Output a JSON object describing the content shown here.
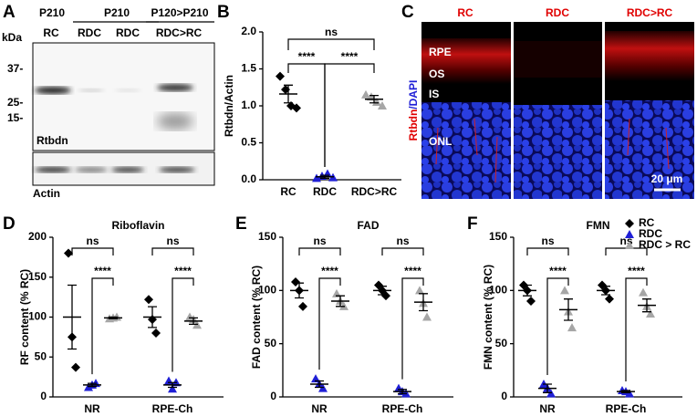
{
  "panel_letters": [
    "A",
    "B",
    "C",
    "D",
    "E",
    "F"
  ],
  "blot": {
    "groups": [
      "P210",
      "P210",
      "P120>P210"
    ],
    "lanes": [
      "RC",
      "RDC",
      "RDC",
      "RDC>RC"
    ],
    "unit": "kDa",
    "size_markers": [
      "37-",
      "25-",
      "15-"
    ],
    "protein": "Rtbdn",
    "loading_control": "Actin"
  },
  "micrograph": {
    "conditions": [
      "RC",
      "RDC",
      "RDC>RC"
    ],
    "layers": [
      "RPE",
      "OS",
      "IS",
      "ONL"
    ],
    "stain_red": "Rtbdn",
    "stain_blue": "/DAPI",
    "scale_bar": "20 μm"
  },
  "chart_data": [
    {
      "type": "dot",
      "y_label": "Rtbdn/Actin",
      "categories": [
        "RC",
        "RDC",
        "RDC>RC"
      ],
      "values": [
        1.16,
        0.04,
        1.09
      ],
      "errors": [
        0.12,
        0.02,
        0.05
      ],
      "points": [
        [
          1.4,
          1.22,
          1.0,
          0.97
        ],
        [
          0.02,
          0.05,
          0.08,
          0.03
        ],
        [
          1.15,
          1.12,
          1.05,
          1.0
        ]
      ],
      "colors": [
        "#000000",
        "#1f1fd6",
        "#a6a6a6"
      ],
      "markers": [
        "diamond",
        "triangle",
        "triangle"
      ],
      "ylim": [
        0,
        2
      ],
      "yticks": [
        {
          "value": 0,
          "label": "0.0"
        },
        0.5,
        {
          "value": 1,
          "label": "1.0"
        },
        1.5,
        {
          "value": 2,
          "label": "2.0"
        }
      ],
      "significance": [
        "ns",
        "****",
        "****"
      ]
    },
    {
      "type": "grouped_dot",
      "title": "Riboflavin",
      "y_label": "RF content (% RC)",
      "categories": [
        "NR",
        "RPE-Ch"
      ],
      "series": [
        {
          "color": "#000000",
          "marker": "diamond",
          "values": [
            100,
            100
          ],
          "errors": [
            40,
            13
          ],
          "points": [
            [
              180,
              75,
              37
            ],
            [
              122,
              97,
              80
            ]
          ]
        },
        {
          "color": "#1f1fd6",
          "marker": "triangle",
          "values": [
            15,
            15
          ],
          "errors": [
            2,
            3
          ],
          "points": [
            [
              12,
              15,
              17
            ],
            [
              20,
              10,
              18
            ]
          ]
        },
        {
          "color": "#a6a6a6",
          "marker": "triangle",
          "values": [
            99,
            95
          ],
          "errors": [
            1,
            4
          ],
          "points": [
            [
              98,
              99,
              100
            ],
            [
              100,
              97,
              90
            ]
          ]
        }
      ],
      "ylim": [
        0,
        200
      ],
      "yticks": [
        0,
        50,
        100,
        150,
        200
      ],
      "significance": [
        [
          "ns",
          "****"
        ],
        [
          "ns",
          "****"
        ]
      ]
    },
    {
      "type": "grouped_dot",
      "title": "FAD",
      "y_label": "FAD content (% RC)",
      "categories": [
        "NR",
        "RPE-Ch"
      ],
      "series": [
        {
          "color": "#000000",
          "marker": "diamond",
          "values": [
            100,
            100
          ],
          "errors": [
            7,
            4
          ],
          "points": [
            [
              108,
              100,
              85
            ],
            [
              105,
              100,
              95
            ]
          ]
        },
        {
          "color": "#1f1fd6",
          "marker": "triangle",
          "values": [
            12,
            5
          ],
          "errors": [
            3,
            2
          ],
          "points": [
            [
              17,
              12,
              8
            ],
            [
              8,
              5,
              3
            ]
          ]
        },
        {
          "color": "#a6a6a6",
          "marker": "triangle",
          "values": [
            90,
            89
          ],
          "errors": [
            5,
            8
          ],
          "points": [
            [
              97,
              90,
              85
            ],
            [
              100,
              88,
              75
            ]
          ]
        }
      ],
      "ylim": [
        0,
        150
      ],
      "yticks": [
        0,
        50,
        100,
        150
      ],
      "significance": [
        [
          "ns",
          "****"
        ],
        [
          "ns",
          "****"
        ]
      ]
    },
    {
      "type": "grouped_dot",
      "title": "FMN",
      "y_label": "FMN content (% RC)",
      "categories": [
        "NR",
        "RPE-Ch"
      ],
      "series": [
        {
          "name": "RC",
          "color": "#000000",
          "marker": "diamond",
          "values": [
            100,
            100
          ],
          "errors": [
            5,
            4
          ],
          "points": [
            [
              105,
              100,
              90
            ],
            [
              105,
              100,
              92
            ]
          ]
        },
        {
          "name": "RDC",
          "color": "#1f1fd6",
          "marker": "triangle",
          "values": [
            8,
            5
          ],
          "errors": [
            4,
            1
          ],
          "points": [
            [
              12,
              8,
              3
            ],
            [
              6,
              5,
              3
            ]
          ]
        },
        {
          "name": "RDC > RC",
          "color": "#a6a6a6",
          "marker": "triangle",
          "values": [
            82,
            86
          ],
          "errors": [
            10,
            6
          ],
          "points": [
            [
              100,
              80,
              65
            ],
            [
              98,
              85,
              78
            ]
          ]
        }
      ],
      "ylim": [
        0,
        150
      ],
      "yticks": [
        0,
        50,
        100,
        150
      ],
      "significance": [
        [
          "ns",
          "****"
        ],
        [
          "ns",
          "****"
        ]
      ],
      "legend": "upper right"
    }
  ]
}
